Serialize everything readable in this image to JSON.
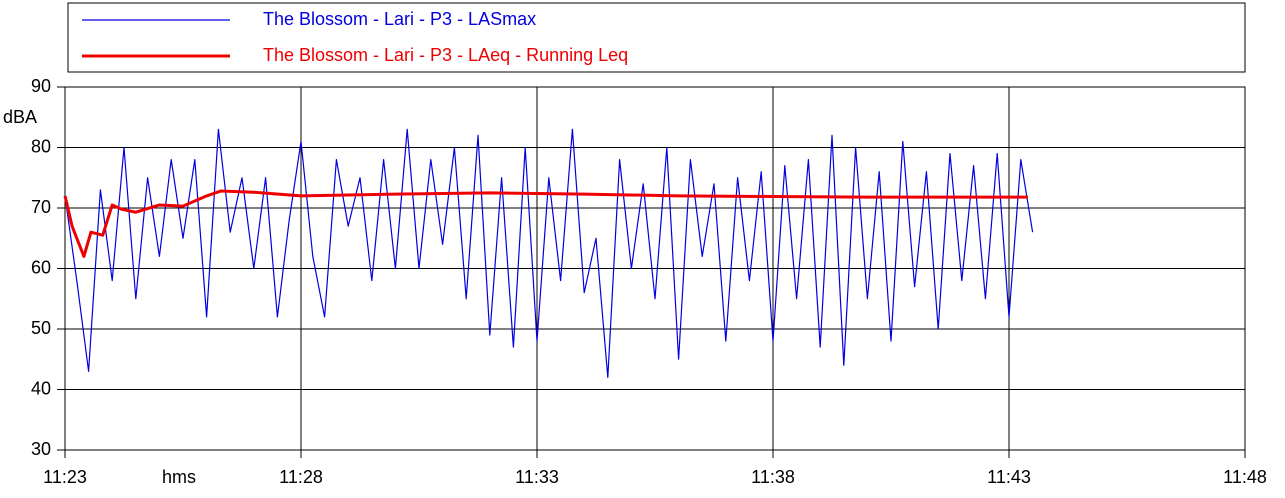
{
  "chart_data": {
    "type": "line",
    "ylabel": "dBA",
    "xlabel": "hms",
    "xlim": [
      683,
      708
    ],
    "ylim": [
      30,
      90
    ],
    "xticks": [
      {
        "value": 683,
        "label": "11:23"
      },
      {
        "value": 688,
        "label": "11:28"
      },
      {
        "value": 693,
        "label": "11:33"
      },
      {
        "value": 698,
        "label": "11:38"
      },
      {
        "value": 703,
        "label": "11:43"
      },
      {
        "value": 708,
        "label": "11:48"
      }
    ],
    "yticks": [
      30,
      40,
      50,
      60,
      70,
      80,
      90
    ],
    "grid": true,
    "legend": "top",
    "series": [
      {
        "name": "The Blossom - Lari - P3 - LASmax",
        "color": "#0000e0",
        "width": 1.2,
        "x": [
          683,
          683.25,
          683.5,
          683.75,
          684,
          684.25,
          684.5,
          684.75,
          685,
          685.25,
          685.5,
          685.75,
          686,
          686.25,
          686.5,
          686.75,
          687,
          687.25,
          687.5,
          687.75,
          688,
          688.25,
          688.5,
          688.75,
          689,
          689.25,
          689.5,
          689.75,
          690,
          690.25,
          690.5,
          690.75,
          691,
          691.25,
          691.5,
          691.75,
          692,
          692.25,
          692.5,
          692.75,
          693,
          693.25,
          693.5,
          693.75,
          694,
          694.25,
          694.5,
          694.75,
          695,
          695.25,
          695.5,
          695.75,
          696,
          696.25,
          696.5,
          696.75,
          697,
          697.25,
          697.5,
          697.75,
          698,
          698.25,
          698.5,
          698.75,
          699,
          699.25,
          699.5,
          699.75,
          700,
          700.25,
          700.5,
          700.75,
          701,
          701.25,
          701.5,
          701.75,
          702,
          702.25,
          702.5,
          702.75,
          703,
          703.25,
          703.5
        ],
        "values": [
          72,
          58,
          43,
          73,
          58,
          80,
          55,
          75,
          62,
          78,
          65,
          78,
          52,
          83,
          66,
          75,
          60,
          75,
          52,
          68,
          81,
          62,
          52,
          78,
          67,
          75,
          58,
          78,
          60,
          83,
          60,
          78,
          64,
          80,
          55,
          82,
          49,
          75,
          47,
          80,
          48,
          75,
          58,
          83,
          56,
          65,
          42,
          78,
          60,
          74,
          55,
          80,
          45,
          78,
          62,
          74,
          48,
          75,
          58,
          76,
          48,
          77,
          55,
          78,
          47,
          82,
          44,
          80,
          55,
          76,
          48,
          81,
          57,
          76,
          50,
          79,
          58,
          77,
          55,
          79,
          52,
          78,
          66
        ]
      },
      {
        "name": "The Blossom - Lari - P3 - LAeq - Running Leq",
        "color": "#ee0000",
        "width": 3,
        "x": [
          683,
          683.15,
          683.4,
          683.55,
          683.8,
          684,
          684.2,
          684.5,
          685,
          685.5,
          686,
          686.3,
          687,
          688,
          690,
          692,
          694,
          696,
          698,
          700,
          702,
          703.4
        ],
        "values": [
          72,
          67,
          62,
          66,
          65.5,
          70.5,
          69.8,
          69.3,
          70.5,
          70.3,
          72,
          72.8,
          72.6,
          72,
          72.3,
          72.5,
          72.3,
          72,
          71.9,
          71.8,
          71.8,
          71.8
        ]
      }
    ]
  }
}
